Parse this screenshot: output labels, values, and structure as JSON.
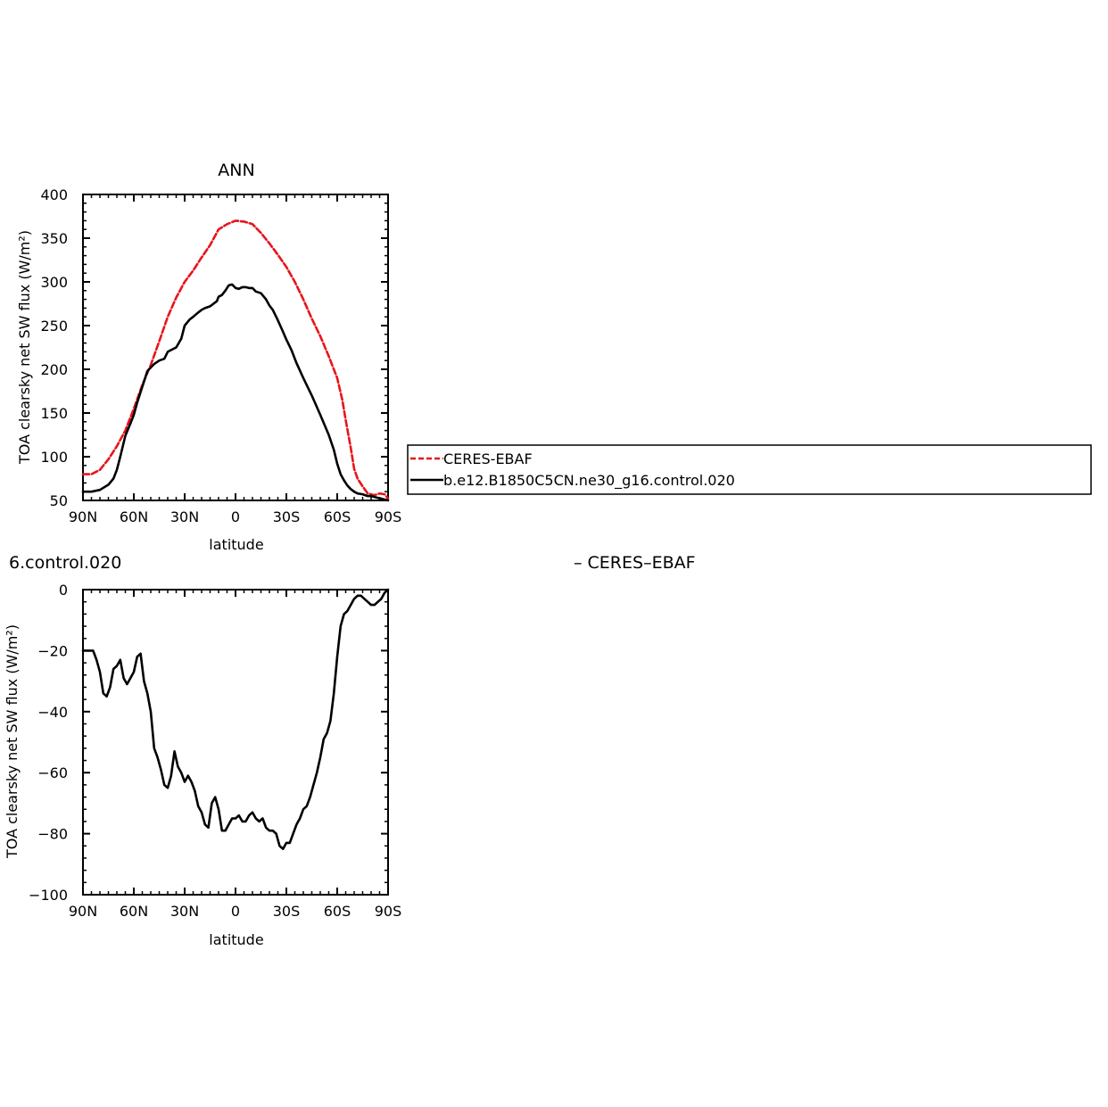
{
  "colors": {
    "observation": "#e8141b",
    "model": "#000000",
    "axis": "#000000"
  },
  "chart_data": [
    {
      "type": "line",
      "title": "ANN",
      "xlabel": "latitude",
      "ylabel": "TOA clearsky net SW flux (W/m²)",
      "ylim": [
        50,
        400
      ],
      "yticks": [
        50,
        100,
        150,
        200,
        250,
        300,
        350,
        400
      ],
      "xlim": [
        90,
        -90
      ],
      "xticks": [
        {
          "v": 90,
          "label": "90N"
        },
        {
          "v": 60,
          "label": "60N"
        },
        {
          "v": 30,
          "label": "30N"
        },
        {
          "v": 0,
          "label": "0"
        },
        {
          "v": -30,
          "label": "30S"
        },
        {
          "v": -60,
          "label": "60S"
        },
        {
          "v": -90,
          "label": "90S"
        }
      ],
      "legend": {
        "placement": "right",
        "entries": [
          "CERES-EBAF",
          "b.e12.B1850C5CN.ne30_g16.control.020"
        ]
      },
      "series": [
        {
          "name": "CERES-EBAF",
          "style": "dashed",
          "color": "#e8141b",
          "x": [
            90,
            85,
            80,
            75,
            70,
            65,
            60,
            55,
            50,
            45,
            40,
            35,
            30,
            25,
            20,
            15,
            10,
            5,
            0,
            -5,
            -10,
            -15,
            -20,
            -25,
            -30,
            -35,
            -40,
            -45,
            -50,
            -55,
            -60,
            -63,
            -65,
            -68,
            -70,
            -72,
            -75,
            -78,
            -80,
            -82,
            -85,
            -88,
            -90
          ],
          "y": [
            80,
            80,
            85,
            97,
            112,
            130,
            155,
            182,
            205,
            232,
            260,
            282,
            300,
            313,
            328,
            342,
            360,
            366,
            370,
            369,
            366,
            356,
            344,
            331,
            317,
            300,
            280,
            258,
            238,
            215,
            190,
            165,
            142,
            110,
            86,
            75,
            66,
            58,
            57,
            56,
            58,
            57,
            52
          ]
        },
        {
          "name": "b.e12.B1850C5CN.ne30_g16.control.020",
          "style": "solid",
          "color": "#000000",
          "x": [
            90,
            85,
            80,
            75,
            72,
            70,
            68,
            65,
            62,
            60,
            58,
            55,
            52,
            50,
            48,
            45,
            42,
            40,
            38,
            35,
            32,
            30,
            27,
            25,
            22,
            20,
            18,
            15,
            13,
            11,
            10,
            8,
            6,
            4,
            2,
            0,
            -2,
            -4,
            -6,
            -8,
            -10,
            -12,
            -15,
            -18,
            -20,
            -22,
            -25,
            -28,
            -30,
            -33,
            -36,
            -40,
            -45,
            -50,
            -55,
            -58,
            -60,
            -62,
            -64,
            -66,
            -68,
            -70,
            -72,
            -75,
            -78,
            -80,
            -82,
            -84,
            -86,
            -88,
            -90
          ],
          "y": [
            60,
            60,
            62,
            68,
            75,
            85,
            100,
            124,
            138,
            148,
            162,
            180,
            198,
            202,
            206,
            210,
            212,
            220,
            222,
            225,
            235,
            250,
            257,
            260,
            265,
            268,
            270,
            272,
            275,
            278,
            283,
            285,
            290,
            296,
            297,
            293,
            292,
            294,
            294,
            293,
            293,
            289,
            287,
            280,
            273,
            268,
            256,
            243,
            234,
            222,
            207,
            190,
            170,
            148,
            125,
            108,
            92,
            80,
            73,
            67,
            63,
            60,
            58,
            57,
            55,
            55,
            54,
            53,
            52,
            51,
            50
          ]
        }
      ]
    },
    {
      "type": "line",
      "title": "6.control.020",
      "title_suffix": "– CERES–EBAF",
      "xlabel": "latitude",
      "ylabel": "TOA clearsky net SW flux (W/m²)",
      "ylim": [
        -100,
        0
      ],
      "yticks": [
        -100,
        -80,
        -60,
        -40,
        -20,
        0
      ],
      "ytick_labels": [
        "−100",
        "−80",
        "−60",
        "−40",
        "−20",
        "0"
      ],
      "xlim": [
        90,
        -90
      ],
      "xticks": [
        {
          "v": 90,
          "label": "90N"
        },
        {
          "v": 60,
          "label": "60N"
        },
        {
          "v": 30,
          "label": "30N"
        },
        {
          "v": 0,
          "label": "0"
        },
        {
          "v": -30,
          "label": "30S"
        },
        {
          "v": -60,
          "label": "60S"
        },
        {
          "v": -90,
          "label": "90S"
        }
      ],
      "series": [
        {
          "style": "solid",
          "color": "#000000",
          "x": [
            90,
            87,
            84,
            82,
            80,
            78,
            76,
            74,
            72,
            70,
            68,
            66,
            64,
            62,
            60,
            58,
            56,
            54,
            52,
            50,
            48,
            46,
            44,
            42,
            40,
            38,
            36,
            34,
            32,
            30,
            28,
            26,
            24,
            22,
            20,
            18,
            16,
            14,
            12,
            10,
            8,
            6,
            4,
            2,
            0,
            -2,
            -4,
            -6,
            -8,
            -10,
            -12,
            -14,
            -16,
            -18,
            -20,
            -22,
            -24,
            -26,
            -28,
            -30,
            -32,
            -34,
            -36,
            -38,
            -40,
            -42,
            -44,
            -46,
            -48,
            -50,
            -52,
            -54,
            -56,
            -58,
            -60,
            -62,
            -64,
            -66,
            -68,
            -70,
            -72,
            -74,
            -76,
            -78,
            -80,
            -82,
            -84,
            -86,
            -88,
            -90
          ],
          "y": [
            -20,
            -20,
            -20,
            -23,
            -27,
            -34,
            -35,
            -32,
            -26,
            -25,
            -23,
            -29,
            -31,
            -29,
            -27,
            -22,
            -21,
            -30,
            -34,
            -40,
            -52,
            -55,
            -59,
            -64,
            -65,
            -61,
            -53,
            -58,
            -60,
            -63,
            -61,
            -63,
            -66,
            -71,
            -73,
            -77,
            -78,
            -70,
            -68,
            -72,
            -79,
            -79,
            -77,
            -75,
            -75,
            -74,
            -76,
            -76,
            -74,
            -73,
            -75,
            -76,
            -75,
            -78,
            -79,
            -79,
            -80,
            -84,
            -85,
            -83,
            -83,
            -80,
            -77,
            -75,
            -72,
            -71,
            -68,
            -64,
            -60,
            -55,
            -49,
            -47,
            -43,
            -34,
            -22,
            -12,
            -8,
            -7,
            -5,
            -3,
            -2,
            -2,
            -3,
            -4,
            -5,
            -5,
            -4,
            -3,
            -1,
            0
          ]
        }
      ]
    }
  ]
}
